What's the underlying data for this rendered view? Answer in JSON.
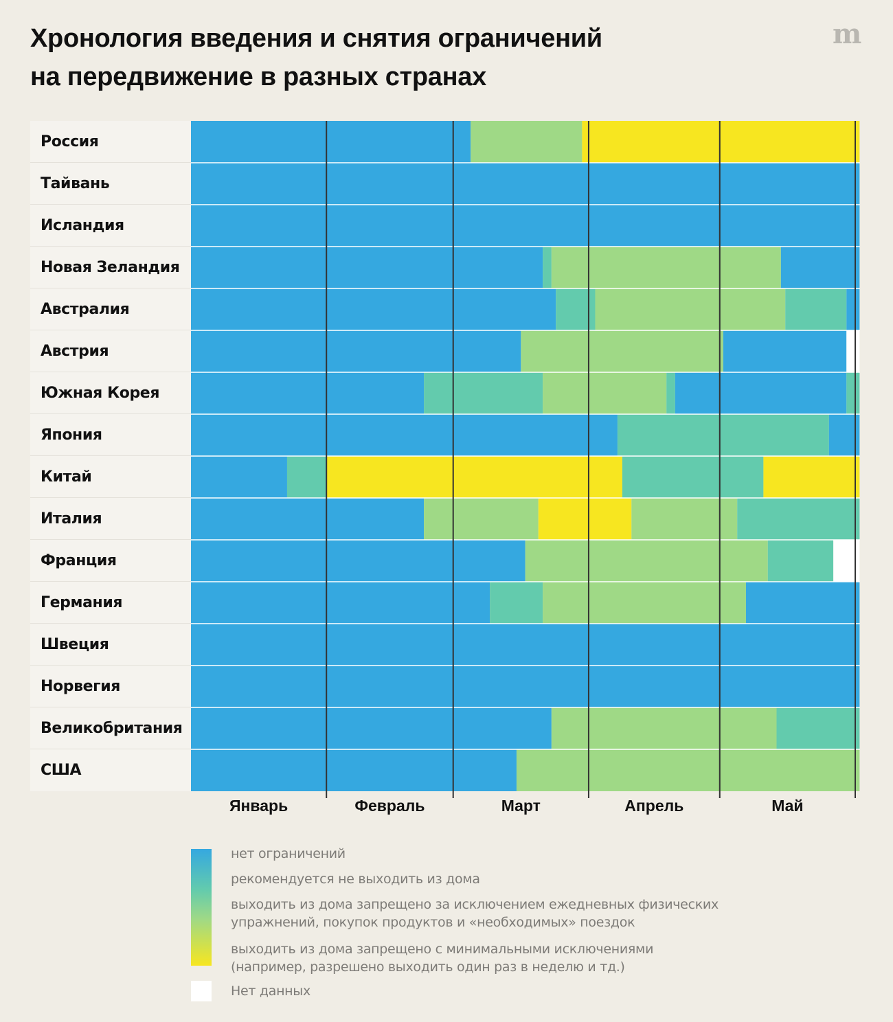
{
  "title_line1": "Хронология введения и снятия ограничений",
  "title_line2": "на передвижение в разных странах",
  "logo": "m",
  "legend": {
    "items": [
      {
        "level": 0,
        "label": "нет ограничений",
        "color": "#35a8e0"
      },
      {
        "level": 1,
        "label": "рекомендуется не выходить из дома",
        "color": "#63cbad"
      },
      {
        "level": 2,
        "label": "выходить из дома запрещено за исключением ежедневных физических упражнений, покупок продуктов и «необходимых» поездок",
        "color": "#9fd986"
      },
      {
        "level": 3,
        "label": "выходить из дома запрещено с минимальными исключениями (например, разрешено выходить один раз в неделю и тд.)",
        "color": "#f7e620"
      }
    ],
    "line2a": "выходить из дома запрещено за исключением ежедневных физических",
    "line2b": "упражнений, покупок продуктов и «необходимых» поездок",
    "line3a": "выходить из дома запрещено с минимальными исключениями",
    "line3b": "(например, разрешено выходить один раз в неделю и тд.)",
    "no_data": {
      "level": -1,
      "label": "Нет данных",
      "color": "#ffffff"
    }
  },
  "chart_data": {
    "type": "heatmap",
    "title": "Хронология введения и снятия ограничений на передвижение в разных странах",
    "x_unit": "days since 1 January 2020",
    "x_range": [
      0,
      153
    ],
    "months": [
      {
        "label": "Январь",
        "start": 0,
        "end": 31
      },
      {
        "label": "Февраль",
        "start": 31,
        "end": 60
      },
      {
        "label": "Март",
        "start": 60,
        "end": 91
      },
      {
        "label": "Апрель",
        "start": 91,
        "end": 121
      },
      {
        "label": "Май",
        "start": 121,
        "end": 152
      }
    ],
    "month_dividers": [
      31,
      60,
      91,
      121,
      152
    ],
    "level_colors": {
      "0": "#35a8e0",
      "1": "#63cbad",
      "2": "#9fd986",
      "3": "#f7e620",
      "-1": "#ffffff"
    },
    "rows": [
      {
        "country": "Россия",
        "segments": [
          [
            0,
            64,
            0
          ],
          [
            64,
            89.5,
            2
          ],
          [
            89.5,
            153,
            3
          ]
        ]
      },
      {
        "country": "Тайвань",
        "segments": [
          [
            0,
            153,
            0
          ]
        ]
      },
      {
        "country": "Исландия",
        "segments": [
          [
            0,
            153,
            0
          ]
        ]
      },
      {
        "country": "Новая Зеландия",
        "segments": [
          [
            0,
            80.5,
            0
          ],
          [
            80.5,
            82.5,
            1
          ],
          [
            82.5,
            135,
            2
          ],
          [
            135,
            153,
            0
          ]
        ]
      },
      {
        "country": "Австралия",
        "segments": [
          [
            0,
            83.5,
            0
          ],
          [
            83.5,
            92.5,
            1
          ],
          [
            92.5,
            136,
            2
          ],
          [
            136,
            150,
            1
          ],
          [
            150,
            153,
            0
          ]
        ]
      },
      {
        "country": "Австрия",
        "segments": [
          [
            0,
            75.5,
            0
          ],
          [
            75.5,
            121.8,
            2
          ],
          [
            121.8,
            150,
            0
          ],
          [
            150,
            153,
            -1
          ]
        ]
      },
      {
        "country": "Южная Корея",
        "segments": [
          [
            0,
            53.3,
            0
          ],
          [
            53.3,
            80.5,
            1
          ],
          [
            80.5,
            108.8,
            2
          ],
          [
            108.8,
            110.8,
            1
          ],
          [
            110.8,
            150,
            0
          ],
          [
            150,
            153,
            1
          ]
        ]
      },
      {
        "country": "Япония",
        "segments": [
          [
            0,
            97.6,
            0
          ],
          [
            97.6,
            146,
            1
          ],
          [
            146,
            153,
            0
          ]
        ]
      },
      {
        "country": "Китай",
        "segments": [
          [
            0,
            22,
            0
          ],
          [
            22,
            31,
            1
          ],
          [
            31,
            98.7,
            3
          ],
          [
            98.7,
            131,
            1
          ],
          [
            131,
            153,
            3
          ]
        ]
      },
      {
        "country": "Италия",
        "segments": [
          [
            0,
            53.3,
            0
          ],
          [
            53.3,
            79.5,
            2
          ],
          [
            79.5,
            100.8,
            3
          ],
          [
            100.8,
            125,
            2
          ],
          [
            125,
            153,
            1
          ]
        ]
      },
      {
        "country": "Франция",
        "segments": [
          [
            0,
            76.5,
            0
          ],
          [
            76.5,
            132,
            2
          ],
          [
            132,
            147,
            1
          ],
          [
            147,
            153,
            -1
          ]
        ]
      },
      {
        "country": "Германия",
        "segments": [
          [
            0,
            68.4,
            0
          ],
          [
            68.4,
            80.5,
            1
          ],
          [
            80.5,
            127,
            2
          ],
          [
            127,
            153,
            0
          ]
        ]
      },
      {
        "country": "Швеция",
        "segments": [
          [
            0,
            153,
            0
          ]
        ]
      },
      {
        "country": "Норвегия",
        "segments": [
          [
            0,
            153,
            0
          ]
        ]
      },
      {
        "country": "Великобритания",
        "segments": [
          [
            0,
            82.5,
            0
          ],
          [
            82.5,
            134,
            2
          ],
          [
            134,
            153,
            1
          ]
        ]
      },
      {
        "country": "США",
        "segments": [
          [
            0,
            74.5,
            0
          ],
          [
            74.5,
            153,
            2
          ]
        ]
      }
    ]
  }
}
